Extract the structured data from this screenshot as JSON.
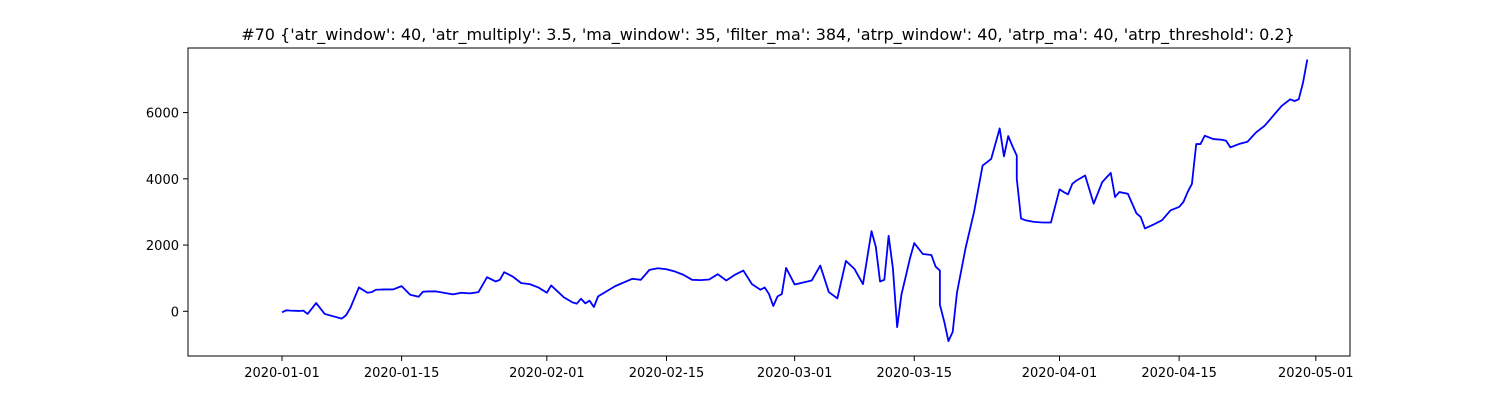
{
  "chart_data": {
    "type": "line",
    "title": "#70 {'atr_window': 40, 'atr_multiply': 3.5, 'ma_window': 35, 'filter_ma': 384, 'atrp_window': 40, 'atrp_ma': 40, 'atrp_threshold': 0.2}",
    "xlabel": "",
    "ylabel": "",
    "x_axis_type": "date",
    "xlim": [
      "2019-12-21",
      "2020-05-05"
    ],
    "ylim": [
      -1350,
      7950
    ],
    "x_ticks": [
      "2020-01-01",
      "2020-01-15",
      "2020-02-01",
      "2020-02-15",
      "2020-03-01",
      "2020-03-15",
      "2020-04-01",
      "2020-04-15",
      "2020-05-01"
    ],
    "y_ticks": [
      0,
      2000,
      4000,
      6000
    ],
    "grid": false,
    "line_color": "#0000ff",
    "series": [
      {
        "x": [
          "2020-01-01",
          "2020-01-01",
          "2020-01-02",
          "2020-01-03",
          "2020-01-03",
          "2020-01-04",
          "2020-01-05",
          "2020-01-06",
          "2020-01-08",
          "2020-01-08",
          "2020-01-09",
          "2020-01-10",
          "2020-01-11",
          "2020-01-11",
          "2020-01-12",
          "2020-01-13",
          "2020-01-14",
          "2020-01-15",
          "2020-01-16",
          "2020-01-17",
          "2020-01-17",
          "2020-01-18",
          "2020-01-19",
          "2020-01-21",
          "2020-01-22",
          "2020-01-23",
          "2020-01-24",
          "2020-01-25",
          "2020-01-26",
          "2020-01-26",
          "2020-01-27",
          "2020-01-28",
          "2020-01-29",
          "2020-01-30",
          "2020-01-31",
          "2020-02-01",
          "2020-02-01",
          "2020-02-03",
          "2020-02-04",
          "2020-02-04",
          "2020-02-05",
          "2020-02-05",
          "2020-02-06",
          "2020-02-06",
          "2020-02-07",
          "2020-02-09",
          "2020-02-11",
          "2020-02-12",
          "2020-02-12",
          "2020-02-13",
          "2020-02-14",
          "2020-02-15",
          "2020-02-16",
          "2020-02-17",
          "2020-02-18",
          "2020-02-19",
          "2020-02-20",
          "2020-02-21",
          "2020-02-22",
          "2020-02-23",
          "2020-02-24",
          "2020-02-25",
          "2020-02-26",
          "2020-02-26",
          "2020-02-27",
          "2020-02-27",
          "2020-02-28",
          "2020-02-28",
          "2020-02-29",
          "2020-03-01",
          "2020-03-02",
          "2020-03-03",
          "2020-03-04",
          "2020-03-05",
          "2020-03-06",
          "2020-03-07",
          "2020-03-08",
          "2020-03-09",
          "2020-03-10",
          "2020-03-10",
          "2020-03-11",
          "2020-03-11",
          "2020-03-12",
          "2020-03-12",
          "2020-03-13",
          "2020-03-13",
          "2020-03-14",
          "2020-03-14",
          "2020-03-15",
          "2020-03-16",
          "2020-03-17",
          "2020-03-17",
          "2020-03-17",
          "2020-03-18",
          "2020-03-18",
          "2020-03-19",
          "2020-03-19",
          "2020-03-20",
          "2020-03-21",
          "2020-03-22",
          "2020-03-23",
          "2020-03-24",
          "2020-03-25",
          "2020-03-25",
          "2020-03-26",
          "2020-03-26",
          "2020-03-26",
          "2020-03-27",
          "2020-03-27",
          "2020-03-28",
          "2020-03-29",
          "2020-03-30",
          "2020-03-31",
          "2020-04-01",
          "2020-04-01",
          "2020-04-02",
          "2020-04-02",
          "2020-04-03",
          "2020-04-04",
          "2020-04-05",
          "2020-04-06",
          "2020-04-07",
          "2020-04-07",
          "2020-04-08",
          "2020-04-09",
          "2020-04-10",
          "2020-04-10",
          "2020-04-11",
          "2020-04-12",
          "2020-04-13",
          "2020-04-14",
          "2020-04-15",
          "2020-04-15",
          "2020-04-16",
          "2020-04-16",
          "2020-04-17",
          "2020-04-17",
          "2020-04-18",
          "2020-04-19",
          "2020-04-20",
          "2020-04-20",
          "2020-04-21",
          "2020-04-22",
          "2020-04-23",
          "2020-04-24",
          "2020-04-25",
          "2020-04-26",
          "2020-04-27",
          "2020-04-28",
          "2020-04-28",
          "2020-04-29",
          "2020-04-29",
          "2020-04-30"
        ],
        "y": [
          -30,
          30,
          20,
          10,
          20,
          -80,
          250,
          -80,
          -220,
          -120,
          100,
          720,
          560,
          580,
          650,
          660,
          660,
          760,
          500,
          440,
          590,
          600,
          600,
          510,
          560,
          540,
          580,
          1030,
          900,
          950,
          1180,
          1050,
          850,
          820,
          720,
          560,
          780,
          420,
          270,
          230,
          380,
          240,
          320,
          130,
          450,
          760,
          980,
          950,
          1100,
          1250,
          1300,
          1270,
          1200,
          1100,
          950,
          940,
          960,
          1120,
          930,
          1100,
          1230,
          820,
          650,
          720,
          520,
          160,
          450,
          520,
          1310,
          810,
          870,
          930,
          1380,
          580,
          390,
          1520,
          1280,
          820,
          2420,
          1950,
          900,
          950,
          2280,
          1300,
          -480,
          500,
          1050,
          1600,
          2060,
          1730,
          1700,
          1350,
          1230,
          200,
          -300,
          -900,
          -620,
          560,
          1900,
          3000,
          4400,
          4600,
          5520,
          4680,
          5290,
          4980,
          4700,
          4000,
          2800,
          2750,
          2700,
          2680,
          2680,
          3680,
          3600,
          3530,
          3850,
          3950,
          4100,
          3250,
          3900,
          4180,
          3450,
          3600,
          3550,
          2960,
          2850,
          2500,
          2620,
          2750,
          3050,
          3150,
          3300,
          3600,
          3850,
          5050,
          5050,
          5300,
          5200,
          5180,
          5150,
          4950,
          5050,
          5120,
          5400,
          5600,
          5900,
          6200,
          6400,
          6350,
          6400,
          6900,
          7600
        ]
      }
    ]
  }
}
